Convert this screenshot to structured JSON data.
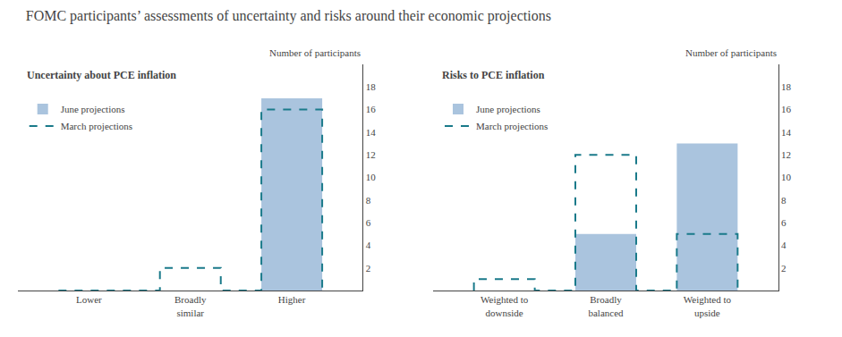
{
  "title": "FOMC participants’ assessments of uncertainty and risks around their economic projections",
  "chart_data": [
    {
      "type": "bar",
      "subtitle": "Uncertainty about PCE inflation",
      "ylabel": "Number of participants",
      "categories": [
        "Lower",
        "Broadly\nsimilar",
        "Higher"
      ],
      "series": [
        {
          "name": "June projections",
          "type": "bar",
          "color": "#aac4de",
          "values": [
            0,
            0,
            17
          ]
        },
        {
          "name": "March projections",
          "type": "line",
          "line_style": "dashed",
          "color": "#1a7a8a",
          "values": [
            0,
            2,
            16
          ]
        }
      ],
      "ylim": [
        0,
        20
      ],
      "yticks": [
        2,
        4,
        6,
        8,
        10,
        12,
        14,
        16,
        18
      ],
      "grid": false,
      "legend": "upper left"
    },
    {
      "type": "bar",
      "subtitle": "Risks to PCE inflation",
      "ylabel": "Number of participants",
      "categories": [
        "Weighted to\ndownside",
        "Broadly\nbalanced",
        "Weighted to\nupside"
      ],
      "series": [
        {
          "name": "June projections",
          "type": "bar",
          "color": "#aac4de",
          "values": [
            0,
            5,
            13
          ]
        },
        {
          "name": "March projections",
          "type": "line",
          "line_style": "dashed",
          "color": "#1a7a8a",
          "values": [
            1,
            12,
            5
          ]
        }
      ],
      "ylim": [
        0,
        20
      ],
      "yticks": [
        2,
        4,
        6,
        8,
        10,
        12,
        14,
        16,
        18
      ],
      "grid": false,
      "legend": "upper left"
    }
  ]
}
